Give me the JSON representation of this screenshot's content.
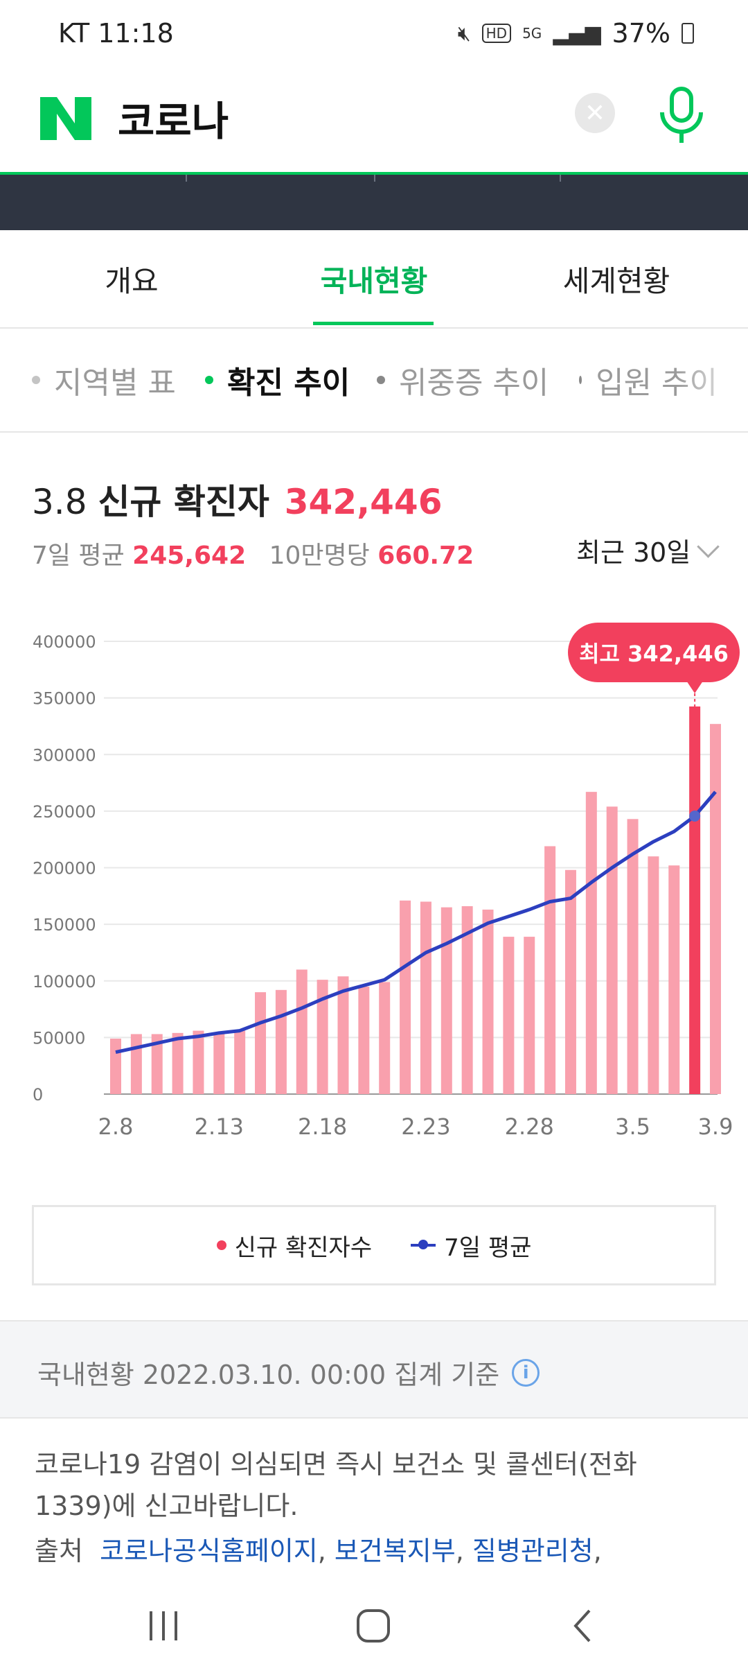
{
  "status_bar": {
    "time": "KT 11:18",
    "battery": "37%"
  },
  "search": {
    "query": "코로나",
    "logo": "N"
  },
  "tabs": [
    {
      "label": "개요",
      "active": false
    },
    {
      "label": "국내현황",
      "active": true
    },
    {
      "label": "세계현황",
      "active": false
    }
  ],
  "subtabs": [
    {
      "label": "지역별 표",
      "active": false
    },
    {
      "label": "확진 추이",
      "active": true
    },
    {
      "label": "위중증 추이",
      "active": false
    },
    {
      "label": "입원 추이",
      "active": false
    }
  ],
  "headline": {
    "date": "3.8",
    "label": "신규 확진자",
    "value": "342,446"
  },
  "subline": {
    "avg_label": "7일 평균",
    "avg_value": "245,642",
    "per_label": "10만명당",
    "per_value": "660.72"
  },
  "period": "최근 30일",
  "chart_data": {
    "type": "bar",
    "yticks": [
      "400000",
      "350000",
      "300000",
      "250000",
      "200000",
      "150000",
      "100000",
      "50000",
      "0"
    ],
    "ylim": [
      0,
      400000
    ],
    "xtick_labels": [
      "2.8",
      "2.13",
      "2.18",
      "2.23",
      "2.28",
      "3.5",
      "3.9"
    ],
    "categories": [
      "2.8",
      "2.9",
      "2.10",
      "2.11",
      "2.12",
      "2.13",
      "2.14",
      "2.15",
      "2.16",
      "2.17",
      "2.18",
      "2.19",
      "2.20",
      "2.21",
      "2.22",
      "2.23",
      "2.24",
      "2.25",
      "2.26",
      "2.27",
      "2.28",
      "3.1",
      "3.2",
      "3.3",
      "3.4",
      "3.5",
      "3.6",
      "3.7",
      "3.8",
      "3.9"
    ],
    "series": [
      {
        "name": "신규 확진자수",
        "type": "bar",
        "values": [
          49000,
          53000,
          53000,
          54000,
          56000,
          54000,
          56000,
          90000,
          92000,
          110000,
          101000,
          104000,
          95000,
          99000,
          171000,
          170000,
          165000,
          166000,
          163000,
          139000,
          139000,
          219000,
          198000,
          267000,
          254000,
          243000,
          210000,
          202000,
          342446,
          327000
        ]
      },
      {
        "name": "7일 평균",
        "type": "line",
        "values": [
          37000,
          41000,
          45000,
          49000,
          51000,
          54000,
          56000,
          63000,
          69000,
          76000,
          84000,
          91000,
          96000,
          101000,
          113000,
          125000,
          133000,
          142000,
          151000,
          157000,
          163000,
          170000,
          173000,
          187000,
          200000,
          212000,
          223000,
          232000,
          245642,
          267000
        ]
      }
    ],
    "highlight_index": 28,
    "highlight_label": "최고 342,446"
  },
  "legend": {
    "bar_label": "신규 확진자수",
    "line_label": "7일 평균"
  },
  "info": {
    "text": "국내현황 2022.03.10. 00:00 집계 기준",
    "icon": "info-icon"
  },
  "notice": {
    "text": "코로나19 감염이 의심되면 즉시 보건소 및 콜센터(전화 1339)에 신고바랍니다.",
    "source_label": "출처",
    "links": [
      "코로나공식홈페이지",
      "보건복지부",
      "질병관리청"
    ]
  },
  "colors": {
    "accent_green": "#03c75a",
    "bar": "#f9a0ad",
    "bar_highlight": "#f2405d",
    "line": "#2c3fbf"
  }
}
